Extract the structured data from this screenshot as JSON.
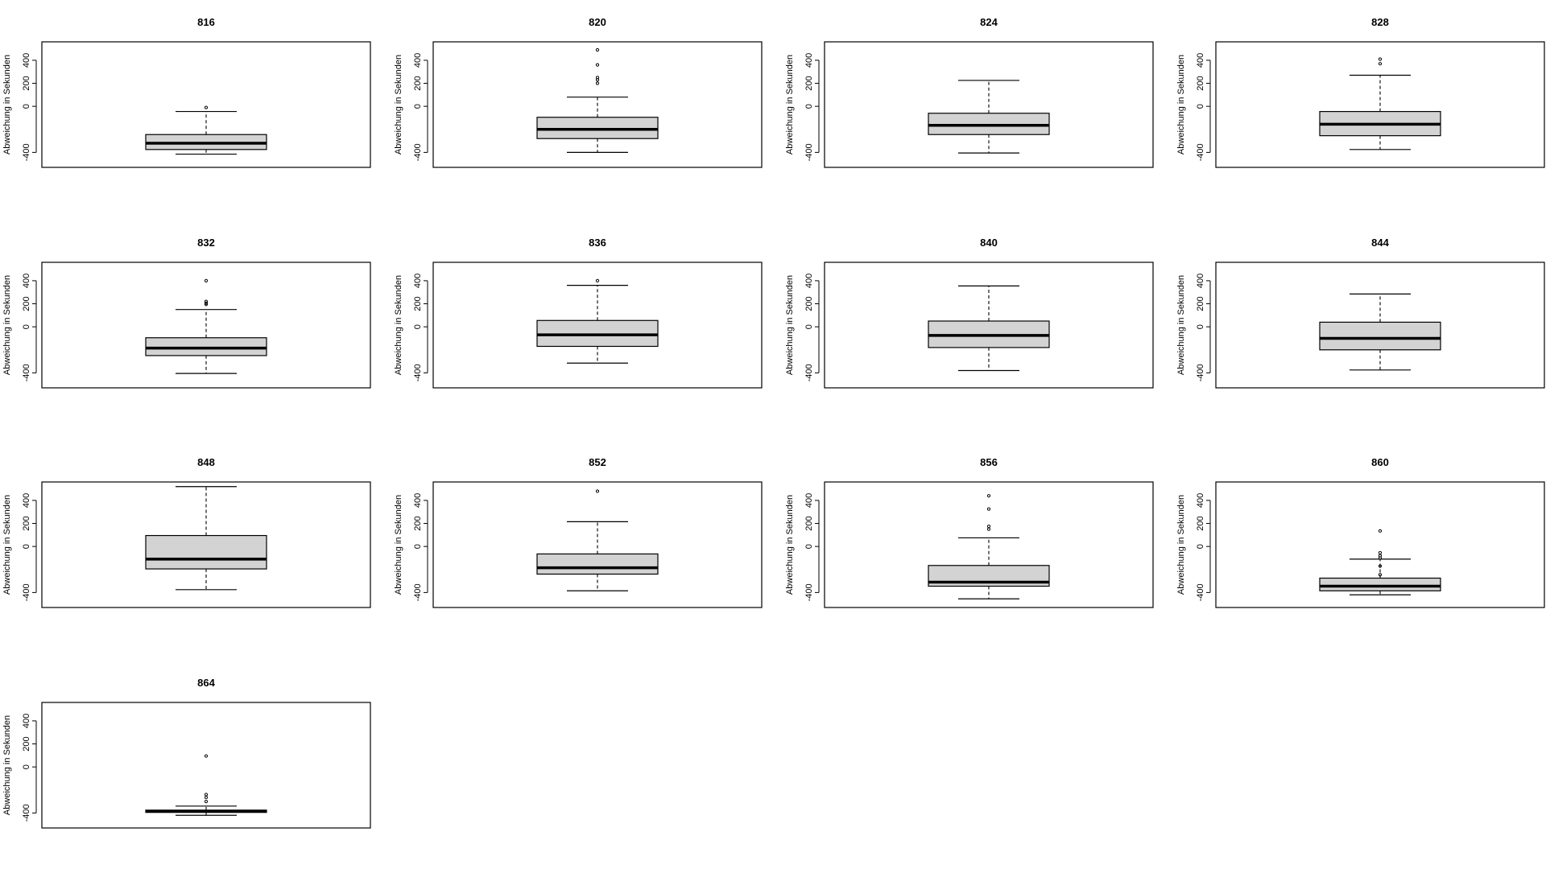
{
  "chart_data": [
    {
      "type": "box",
      "title": "816",
      "ylabel": "Abweichung in Sekunden",
      "yticks": [
        -400,
        0,
        200,
        400
      ],
      "ylim": [
        -530,
        560
      ],
      "box": {
        "whisker_low": -415,
        "q1": -375,
        "median": -320,
        "q3": -245,
        "whisker_high": -45
      },
      "outliers": [
        -10
      ]
    },
    {
      "type": "box",
      "title": "820",
      "ylabel": "Abweichung in Sekunden",
      "yticks": [
        -400,
        0,
        200,
        400
      ],
      "ylim": [
        -530,
        560
      ],
      "box": {
        "whisker_low": -400,
        "q1": -280,
        "median": -200,
        "q3": -95,
        "whisker_high": 80
      },
      "outliers": [
        200,
        230,
        250,
        360,
        490
      ]
    },
    {
      "type": "box",
      "title": "824",
      "ylabel": "Abweichung in Sekunden",
      "yticks": [
        -400,
        0,
        200,
        400
      ],
      "ylim": [
        -530,
        560
      ],
      "box": {
        "whisker_low": -405,
        "q1": -245,
        "median": -165,
        "q3": -60,
        "whisker_high": 225
      },
      "outliers": []
    },
    {
      "type": "box",
      "title": "828",
      "ylabel": "Abweichung in Sekunden",
      "yticks": [
        -400,
        0,
        200,
        400
      ],
      "ylim": [
        -530,
        560
      ],
      "box": {
        "whisker_low": -375,
        "q1": -255,
        "median": -155,
        "q3": -45,
        "whisker_high": 270
      },
      "outliers": [
        370,
        410
      ]
    },
    {
      "type": "box",
      "title": "832",
      "ylabel": "Abweichung in Sekunden",
      "yticks": [
        -400,
        0,
        200,
        400
      ],
      "ylim": [
        -530,
        560
      ],
      "box": {
        "whisker_low": -405,
        "q1": -250,
        "median": -185,
        "q3": -95,
        "whisker_high": 150
      },
      "outliers": [
        195,
        205,
        220,
        400
      ]
    },
    {
      "type": "box",
      "title": "836",
      "ylabel": "Abweichung in Sekunden",
      "yticks": [
        -400,
        0,
        200,
        400
      ],
      "ylim": [
        -530,
        560
      ],
      "box": {
        "whisker_low": -315,
        "q1": -170,
        "median": -70,
        "q3": 55,
        "whisker_high": 360
      },
      "outliers": [
        400
      ]
    },
    {
      "type": "box",
      "title": "840",
      "ylabel": "Abweichung in Sekunden",
      "yticks": [
        -400,
        0,
        200,
        400
      ],
      "ylim": [
        -530,
        560
      ],
      "box": {
        "whisker_low": -380,
        "q1": -180,
        "median": -75,
        "q3": 50,
        "whisker_high": 355
      },
      "outliers": []
    },
    {
      "type": "box",
      "title": "844",
      "ylabel": "Abweichung in Sekunden",
      "yticks": [
        -400,
        0,
        200,
        400
      ],
      "ylim": [
        -530,
        560
      ],
      "box": {
        "whisker_low": -375,
        "q1": -200,
        "median": -100,
        "q3": 40,
        "whisker_high": 285
      },
      "outliers": []
    },
    {
      "type": "box",
      "title": "848",
      "ylabel": "Abweichung in Sekunden",
      "yticks": [
        -400,
        0,
        200,
        400
      ],
      "ylim": [
        -530,
        560
      ],
      "box": {
        "whisker_low": -375,
        "q1": -195,
        "median": -110,
        "q3": 95,
        "whisker_high": 520
      },
      "outliers": []
    },
    {
      "type": "box",
      "title": "852",
      "ylabel": "Abweichung in Sekunden",
      "yticks": [
        -400,
        0,
        200,
        400
      ],
      "ylim": [
        -530,
        560
      ],
      "box": {
        "whisker_low": -385,
        "q1": -240,
        "median": -185,
        "q3": -65,
        "whisker_high": 215
      },
      "outliers": [
        480
      ]
    },
    {
      "type": "box",
      "title": "856",
      "ylabel": "Abweichung in Sekunden",
      "yticks": [
        -400,
        0,
        200,
        400
      ],
      "ylim": [
        -530,
        560
      ],
      "box": {
        "whisker_low": -455,
        "q1": -345,
        "median": -310,
        "q3": -165,
        "whisker_high": 75
      },
      "outliers": [
        150,
        175,
        325,
        440
      ]
    },
    {
      "type": "box",
      "title": "860",
      "ylabel": "Abweichung in Sekunden",
      "yticks": [
        -400,
        0,
        200,
        400
      ],
      "ylim": [
        -530,
        560
      ],
      "box": {
        "whisker_low": -420,
        "q1": -385,
        "median": -345,
        "q3": -275,
        "whisker_high": -110
      },
      "outliers": [
        -55,
        -80,
        -100,
        -170,
        -245,
        135
      ]
    },
    {
      "type": "box",
      "title": "864",
      "ylabel": "Abweichung in Sekunden",
      "yticks": [
        -400,
        0,
        200,
        400
      ],
      "ylim": [
        -530,
        560
      ],
      "box": {
        "whisker_low": -420,
        "q1": -395,
        "median": -385,
        "q3": -375,
        "whisker_high": -340
      },
      "outliers": [
        -300,
        -265,
        -240,
        95
      ]
    }
  ]
}
